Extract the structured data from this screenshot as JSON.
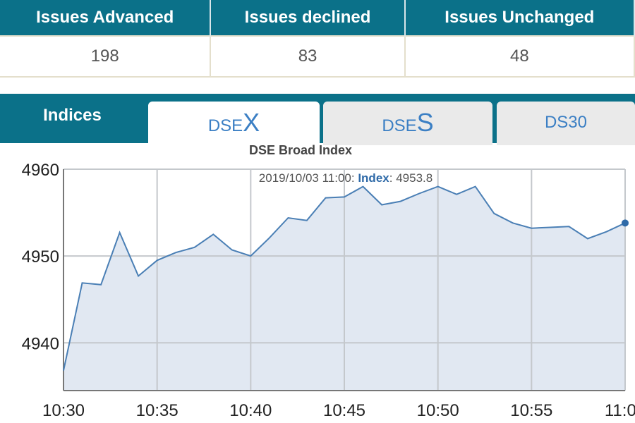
{
  "stats": {
    "headers": [
      "Issues Advanced",
      "Issues declined",
      "Issues Unchanged"
    ],
    "values": [
      "198",
      "83",
      "48"
    ]
  },
  "tabs": {
    "indices": "Indices",
    "dsex_prefix": "DSE",
    "dsex_suffix": "X",
    "dses_prefix": "DSE",
    "dses_suffix": "S",
    "ds30": "DS30"
  },
  "chart_data": {
    "type": "area",
    "title": "DSE Broad Index",
    "tooltip": {
      "date": "2019/10/03 11:00:",
      "series": "Index",
      "sep": ":",
      "value": "4953.8"
    },
    "x": [
      "10:30",
      "10:31",
      "10:32",
      "10:33",
      "10:34",
      "10:35",
      "10:36",
      "10:37",
      "10:38",
      "10:39",
      "10:40",
      "10:41",
      "10:42",
      "10:43",
      "10:44",
      "10:45",
      "10:46",
      "10:47",
      "10:48",
      "10:49",
      "10:50",
      "10:51",
      "10:52",
      "10:53",
      "10:54",
      "10:55",
      "10:56",
      "10:57",
      "10:58",
      "10:59",
      "11:00"
    ],
    "values": [
      4936.8,
      4946.9,
      4946.7,
      4952.7,
      4947.7,
      4949.5,
      4950.4,
      4951.0,
      4952.5,
      4950.7,
      4950.0,
      4952.1,
      4954.4,
      4954.1,
      4956.7,
      4956.8,
      4958.0,
      4955.9,
      4956.3,
      4957.2,
      4958.0,
      4957.1,
      4958.0,
      4954.9,
      4953.8,
      4953.2,
      4953.3,
      4953.4,
      4952.0,
      4952.8,
      4953.8
    ],
    "xticks": [
      "10:30",
      "10:35",
      "10:40",
      "10:45",
      "10:50",
      "10:55",
      "11:00"
    ],
    "yticks": [
      "4940",
      "4950",
      "4960"
    ],
    "ylim": [
      4934.5,
      4960
    ],
    "xlabel": "",
    "ylabel": "",
    "grid": true,
    "colors": {
      "line": "#4a7fb5",
      "fill": "#dfe7f1",
      "marker": "#2f6aa8"
    }
  }
}
